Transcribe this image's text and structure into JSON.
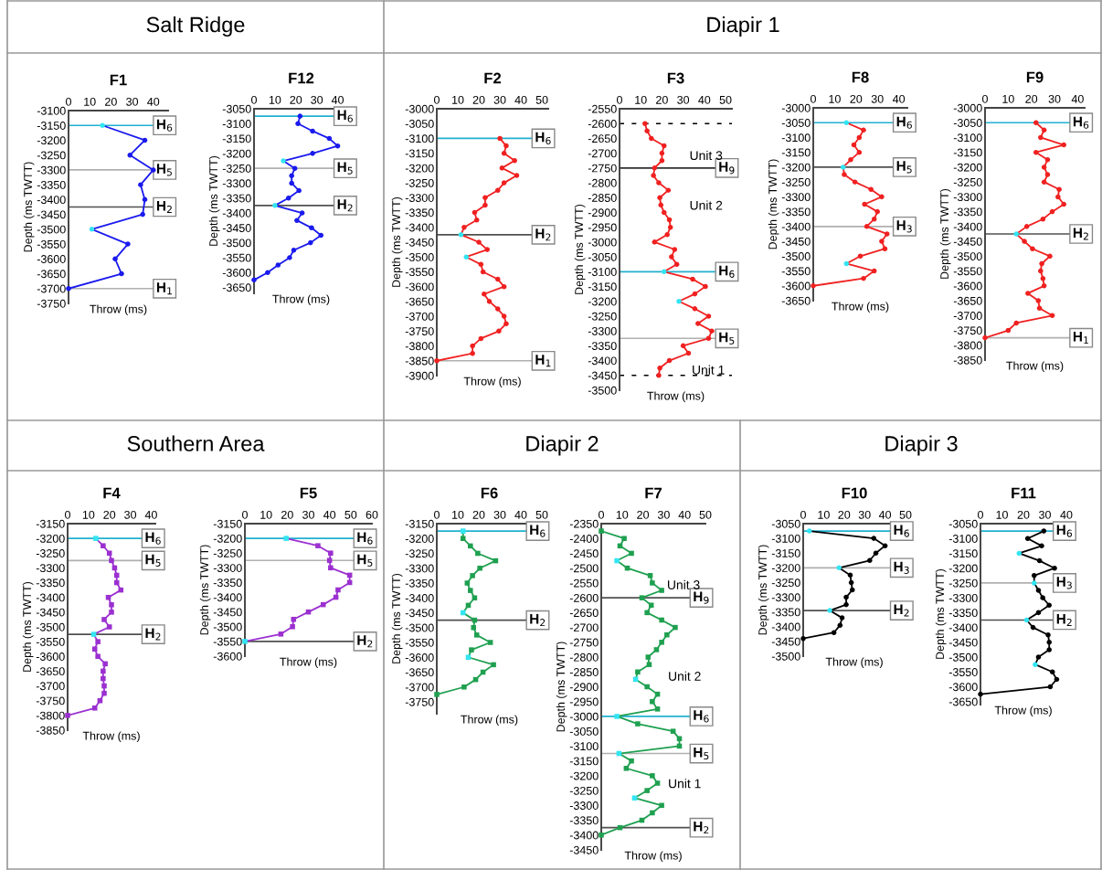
{
  "chart_data": [
    {
      "type": "line",
      "title": "F1",
      "xlabel": "Throw (ms)",
      "ylabel": "Depth (ms TWTT)",
      "marker": "circle",
      "subtitle": "Salt Ridge",
      "xlim": [
        0,
        47
      ],
      "xticks": [
        0,
        10,
        20,
        30,
        40
      ],
      "ylim": [
        -3750,
        -3100
      ],
      "yticks": [
        -3100,
        -3150,
        -3200,
        -3250,
        -3300,
        -3350,
        -3400,
        -3450,
        -3500,
        -3550,
        -3600,
        -3650,
        -3700,
        -3750
      ],
      "series": [
        {
          "color": "#1a1aee",
          "x": [
            16,
            36,
            29,
            40,
            34,
            36,
            35,
            11,
            28,
            22,
            25,
            0
          ],
          "values": [
            -3150,
            -3200,
            -3250,
            -3300,
            -3350,
            -3400,
            -3450,
            -3500,
            -3550,
            -3600,
            -3650,
            -3700
          ],
          "colors": [
            "#33e5f2",
            null,
            null,
            null,
            null,
            null,
            null,
            "#33e5f2",
            null,
            null,
            null,
            null
          ]
        }
      ],
      "ref_lines": [
        {
          "axis": "y",
          "value": -3150,
          "label": "H$_{6}$",
          "color": "#20b0d0"
        },
        {
          "axis": "y",
          "value": -3300,
          "label": "H$_{5}$",
          "color": "#b0b0b0"
        },
        {
          "axis": "y",
          "value": -3425,
          "label": "H$_{2}$",
          "color": "#505050"
        },
        {
          "axis": "y",
          "value": -3700,
          "label": "H$_{1}$",
          "color": "#b0b0b0"
        }
      ]
    },
    {
      "type": "line",
      "title": "F12",
      "xlabel": "Throw (ms)",
      "ylabel": "Depth (ms TWTT)",
      "marker": "circle",
      "xlim": [
        0,
        45
      ],
      "xticks": [
        0,
        10,
        20,
        30,
        40
      ],
      "ylim": [
        -3670,
        -3050
      ],
      "yticks": [
        -3050,
        -3100,
        -3150,
        -3200,
        -3250,
        -3300,
        -3350,
        -3400,
        -3450,
        -3500,
        -3550,
        -3600,
        -3650
      ],
      "series": [
        {
          "color": "#1a1aee",
          "x": [
            22,
            21,
            28,
            36,
            40,
            28,
            14,
            19.5,
            18,
            18,
            21.5,
            16.5,
            10,
            23,
            20.5,
            27.5,
            32,
            27,
            19,
            17,
            11.5,
            6.5,
            0
          ],
          "values": [
            -3075,
            -3100,
            -3125,
            -3150,
            -3175,
            -3200,
            -3225,
            -3250,
            -3275,
            -3300,
            -3325,
            -3350,
            -3375,
            -3400,
            -3425,
            -3450,
            -3475,
            -3500,
            -3525,
            -3550,
            -3575,
            -3600,
            -3625
          ],
          "colors": [
            null,
            null,
            null,
            null,
            null,
            null,
            "#33e5f2",
            null,
            null,
            null,
            null,
            null,
            "#33e5f2",
            null,
            null,
            null,
            null,
            null,
            null,
            null,
            null,
            null,
            null
          ]
        }
      ],
      "ref_lines": [
        {
          "axis": "y",
          "value": -3075,
          "label": "H$_{6}$",
          "color": "#20b0d0"
        },
        {
          "axis": "y",
          "value": -3250,
          "label": "H$_{5}$",
          "color": "#b0b0b0"
        },
        {
          "axis": "y",
          "value": -3375,
          "label": "H$_{2}$",
          "color": "#505050"
        }
      ]
    },
    {
      "type": "line",
      "title": "F2",
      "xlabel": "Throw (ms)",
      "ylabel": "Depth (ms TWTT)",
      "marker": "circle",
      "xlim": [
        0,
        53
      ],
      "xticks": [
        0,
        10,
        20,
        30,
        40,
        50
      ],
      "ylim": [
        -3900,
        -3000
      ],
      "yticks": [
        -3000,
        -3050,
        -3100,
        -3150,
        -3200,
        -3250,
        -3300,
        -3350,
        -3400,
        -3450,
        -3500,
        -3550,
        -3600,
        -3650,
        -3700,
        -3750,
        -3800,
        -3850,
        -3900
      ],
      "series": [
        {
          "color": "#f02020",
          "x": [
            30,
            33,
            32,
            37,
            31,
            38,
            32,
            29,
            23,
            23,
            18,
            19,
            13,
            11.5,
            20,
            24,
            14,
            21,
            22,
            29,
            32,
            22.5,
            25,
            29,
            32,
            33,
            29.5,
            21,
            17,
            17,
            0
          ],
          "values": [
            -3100,
            -3125,
            -3150,
            -3175,
            -3200,
            -3225,
            -3250,
            -3275,
            -3300,
            -3325,
            -3350,
            -3375,
            -3400,
            -3425,
            -3450,
            -3475,
            -3500,
            -3525,
            -3550,
            -3575,
            -3600,
            -3625,
            -3650,
            -3675,
            -3700,
            -3725,
            -3750,
            -3775,
            -3800,
            -3825,
            -3850
          ],
          "colors": [
            null,
            null,
            null,
            null,
            null,
            null,
            null,
            null,
            null,
            null,
            null,
            null,
            null,
            "#33e5f2",
            null,
            null,
            "#33e5f2",
            null,
            null,
            null,
            null,
            null,
            null,
            null,
            null,
            null,
            null,
            null,
            null,
            null,
            null
          ]
        }
      ],
      "ref_lines": [
        {
          "axis": "y",
          "value": -3100,
          "label": "H$_{6}$",
          "color": "#20b0d0"
        },
        {
          "axis": "y",
          "value": -3425,
          "label": "H$_{2}$",
          "color": "#505050"
        },
        {
          "axis": "y",
          "value": -3850,
          "label": "H$_{1}$",
          "color": "#b0b0b0"
        }
      ]
    },
    {
      "type": "line",
      "title": "F3",
      "xlabel": "Throw (ms)",
      "ylabel": "Depth (ms TWTT)",
      "marker": "circle",
      "subtitle": "Diapir 1",
      "xlim": [
        0,
        53
      ],
      "xticks": [
        0,
        10,
        20,
        30,
        40,
        50
      ],
      "ylim": [
        -3500,
        -2550
      ],
      "yticks": [
        -2550,
        -2600,
        -2650,
        -2700,
        -2750,
        -2800,
        -2850,
        -2900,
        -2950,
        -3000,
        -3050,
        -3100,
        -3150,
        -3200,
        -3250,
        -3300,
        -3350,
        -3400,
        -3450,
        -3500
      ],
      "annotations": [
        "Unit 3",
        "Unit 2",
        "Unit 1"
      ],
      "series": [
        {
          "color": "#f02020",
          "x": [
            12,
            13,
            15,
            21,
            20,
            20,
            16.5,
            16,
            18.5,
            23,
            19,
            19.5,
            21,
            23.5,
            24,
            22.5,
            16.5,
            26,
            24.5,
            27,
            21,
            34.5,
            40.5,
            35.5,
            28,
            35.5,
            42,
            37,
            43.5,
            42,
            30,
            32.5,
            23.5,
            19,
            18.5
          ],
          "values": [
            -2600,
            -2625,
            -2650,
            -2675,
            -2700,
            -2725,
            -2750,
            -2775,
            -2800,
            -2825,
            -2850,
            -2875,
            -2900,
            -2925,
            -2950,
            -2975,
            -3000,
            -3025,
            -3050,
            -3075,
            -3100,
            -3125,
            -3150,
            -3175,
            -3200,
            -3225,
            -3250,
            -3275,
            -3300,
            -3325,
            -3350,
            -3375,
            -3400,
            -3425,
            -3450
          ],
          "colors": [
            null,
            null,
            null,
            null,
            null,
            null,
            null,
            null,
            null,
            null,
            null,
            null,
            null,
            null,
            null,
            null,
            null,
            null,
            null,
            null,
            "#33e5f2",
            null,
            null,
            null,
            "#33e5f2",
            null,
            null,
            null,
            null,
            null,
            null,
            null,
            null,
            null,
            null
          ]
        }
      ],
      "ref_lines": [
        {
          "axis": "y",
          "value": -2600,
          "color": "#000000",
          "line_style": "dashed"
        },
        {
          "axis": "y",
          "value": -2750,
          "label": "H$_{9}$",
          "color": "#303030"
        },
        {
          "axis": "y",
          "value": -3100,
          "label": "H$_{6}$",
          "color": "#20b0d0"
        },
        {
          "axis": "y",
          "value": -3325,
          "label": "H$_{5}$",
          "color": "#b0b0b0"
        },
        {
          "axis": "y",
          "value": -3450,
          "color": "#000000",
          "line_style": "dashed"
        }
      ]
    },
    {
      "type": "line",
      "title": "F8",
      "xlabel": "Throw (ms)",
      "ylabel": "Depth (ms TWTT)",
      "marker": "circle",
      "xlim": [
        0,
        44
      ],
      "xticks": [
        0,
        10,
        20,
        30,
        40
      ],
      "ylim": [
        -3650,
        -3000
      ],
      "yticks": [
        -3000,
        -3050,
        -3100,
        -3150,
        -3200,
        -3250,
        -3300,
        -3350,
        -3400,
        -3450,
        -3500,
        -3550,
        -3600,
        -3650
      ],
      "series": [
        {
          "color": "#f02020",
          "x": [
            15.5,
            23.5,
            21.5,
            19,
            21.5,
            17.5,
            14,
            14.5,
            19.5,
            27,
            32,
            24,
            30,
            28.5,
            25,
            34.5,
            32,
            33.5,
            22,
            15.5,
            28.5,
            23.5,
            0
          ],
          "values": [
            -3050,
            -3075,
            -3100,
            -3125,
            -3150,
            -3175,
            -3200,
            -3225,
            -3250,
            -3275,
            -3300,
            -3325,
            -3350,
            -3375,
            -3400,
            -3425,
            -3450,
            -3475,
            -3500,
            -3525,
            -3550,
            -3575,
            -3600
          ],
          "colors": [
            "#33e5f2",
            null,
            null,
            null,
            null,
            null,
            "#33e5f2",
            null,
            null,
            null,
            null,
            null,
            null,
            null,
            null,
            null,
            null,
            null,
            null,
            "#33e5f2",
            null,
            null,
            null
          ]
        }
      ],
      "ref_lines": [
        {
          "axis": "y",
          "value": -3050,
          "label": "H$_{6}$",
          "color": "#20b0d0"
        },
        {
          "axis": "y",
          "value": -3200,
          "label": "H$_{5}$",
          "color": "#505050"
        },
        {
          "axis": "y",
          "value": -3400,
          "label": "H$_{3}$",
          "color": "#b0b0b0"
        }
      ]
    },
    {
      "type": "line",
      "title": "F9",
      "xlabel": "Throw (ms)",
      "ylabel": "Depth (ms TWTT)",
      "marker": "circle",
      "xlim": [
        0,
        43
      ],
      "xticks": [
        0,
        10,
        20,
        30,
        40
      ],
      "ylim": [
        -3850,
        -3000
      ],
      "yticks": [
        -3000,
        -3050,
        -3100,
        -3150,
        -3200,
        -3250,
        -3300,
        -3350,
        -3400,
        -3450,
        -3500,
        -3550,
        -3600,
        -3650,
        -3700,
        -3750,
        -3800,
        -3850
      ],
      "series": [
        {
          "color": "#f02020",
          "x": [
            22,
            25.5,
            24,
            34,
            22,
            27,
            25.5,
            27,
            25.5,
            32,
            31.5,
            34,
            29,
            25,
            18,
            13.5,
            17,
            20.5,
            28,
            24.5,
            24,
            25,
            25.5,
            18.5,
            23,
            23.5,
            29,
            13.5,
            10,
            0
          ],
          "values": [
            -3050,
            -3075,
            -3100,
            -3125,
            -3150,
            -3175,
            -3200,
            -3225,
            -3250,
            -3275,
            -3300,
            -3325,
            -3350,
            -3375,
            -3400,
            -3425,
            -3450,
            -3475,
            -3500,
            -3525,
            -3550,
            -3575,
            -3600,
            -3625,
            -3650,
            -3675,
            -3700,
            -3725,
            -3750,
            -3775
          ],
          "colors": [
            null,
            null,
            null,
            null,
            null,
            null,
            null,
            null,
            null,
            null,
            null,
            null,
            null,
            null,
            null,
            "#33e5f2",
            null,
            null,
            null,
            null,
            null,
            null,
            null,
            null,
            null,
            null,
            null,
            null,
            null,
            null
          ]
        }
      ],
      "ref_lines": [
        {
          "axis": "y",
          "value": -3050,
          "label": "H$_{6}$",
          "color": "#20b0d0"
        },
        {
          "axis": "y",
          "value": -3425,
          "label": "H$_{2}$",
          "color": "#505050"
        },
        {
          "axis": "y",
          "value": -3775,
          "label": "H$_{1}$",
          "color": "#b0b0b0"
        }
      ]
    },
    {
      "type": "line",
      "title": "F4",
      "xlabel": "Throw (ms)",
      "ylabel": "Depth (ms TWTT)",
      "marker": "square",
      "subtitle": "Southern Area",
      "xlim": [
        0,
        42
      ],
      "xticks": [
        0,
        10,
        20,
        30,
        40
      ],
      "ylim": [
        -3850,
        -3150
      ],
      "yticks": [
        -3150,
        -3200,
        -3250,
        -3300,
        -3350,
        -3400,
        -3450,
        -3500,
        -3550,
        -3600,
        -3650,
        -3700,
        -3750,
        -3800,
        -3850
      ],
      "series": [
        {
          "color": "#9b30d0",
          "x": [
            13.5,
            17,
            20,
            21,
            22.5,
            23.5,
            23.5,
            25.5,
            19.5,
            21,
            21,
            17.5,
            20,
            12.5,
            14.5,
            13,
            14.5,
            18,
            17,
            17,
            17.5,
            17.5,
            15.5,
            13,
            0
          ],
          "values": [
            -3200,
            -3225,
            -3250,
            -3275,
            -3300,
            -3325,
            -3350,
            -3375,
            -3400,
            -3425,
            -3450,
            -3475,
            -3500,
            -3525,
            -3550,
            -3575,
            -3600,
            -3625,
            -3650,
            -3675,
            -3700,
            -3725,
            -3750,
            -3775,
            -3800
          ],
          "colors": [
            "#33e5f2",
            null,
            null,
            null,
            null,
            null,
            null,
            null,
            null,
            null,
            null,
            null,
            null,
            "#33e5f2",
            null,
            null,
            null,
            null,
            null,
            null,
            null,
            null,
            null,
            null,
            null
          ]
        }
      ],
      "ref_lines": [
        {
          "axis": "y",
          "value": -3200,
          "label": "H$_{6}$",
          "color": "#20b0d0"
        },
        {
          "axis": "y",
          "value": -3275,
          "label": "H$_{5}$",
          "color": "#b0b0b0"
        },
        {
          "axis": "y",
          "value": -3525,
          "label": "H$_{2}$",
          "color": "#505050"
        }
      ]
    },
    {
      "type": "line",
      "title": "F5",
      "xlabel": "Throw (ms)",
      "ylabel": "Depth (ms TWTT)",
      "marker": "square",
      "xlim": [
        0,
        60
      ],
      "xticks": [
        0,
        10,
        20,
        30,
        40,
        50,
        60
      ],
      "ylim": [
        -3600,
        -3150
      ],
      "yticks": [
        -3150,
        -3200,
        -3250,
        -3300,
        -3350,
        -3400,
        -3450,
        -3500,
        -3550,
        -3600
      ],
      "series": [
        {
          "color": "#9b30d0",
          "x": [
            19.5,
            34.5,
            40.5,
            40,
            40.5,
            49.5,
            49.5,
            44,
            43,
            37,
            30,
            23,
            22.5,
            17,
            0
          ],
          "values": [
            -3200,
            -3225,
            -3250,
            -3275,
            -3300,
            -3325,
            -3350,
            -3375,
            -3400,
            -3425,
            -3450,
            -3475,
            -3500,
            -3525,
            -3550
          ],
          "colors": [
            "#33e5f2",
            null,
            null,
            null,
            null,
            null,
            null,
            null,
            null,
            null,
            null,
            null,
            null,
            null,
            "#33e5f2"
          ]
        }
      ],
      "ref_lines": [
        {
          "axis": "y",
          "value": -3200,
          "label": "H$_{6}$",
          "color": "#20b0d0"
        },
        {
          "axis": "y",
          "value": -3275,
          "label": "H$_{5}$",
          "color": "#b0b0b0"
        },
        {
          "axis": "y",
          "value": -3550,
          "label": "H$_{2}$",
          "color": "#505050"
        }
      ]
    },
    {
      "type": "line",
      "title": "F6",
      "xlabel": "Throw (ms)",
      "ylabel": "Depth (ms TWTT)",
      "marker": "square",
      "subtitle": "Diapir 2",
      "xlim": [
        0,
        50
      ],
      "xticks": [
        0,
        10,
        20,
        30,
        40,
        50
      ],
      "ylim": [
        -3790,
        -3150
      ],
      "yticks": [
        -3150,
        -3200,
        -3250,
        -3300,
        -3350,
        -3400,
        -3450,
        -3500,
        -3550,
        -3600,
        -3650,
        -3700,
        -3750
      ],
      "series": [
        {
          "color": "#1fa050",
          "x": [
            12.5,
            12.5,
            16,
            19.5,
            28,
            20.5,
            17,
            14.5,
            16,
            18,
            15,
            12.5,
            18,
            17.5,
            19,
            25.5,
            16.5,
            15,
            27,
            22,
            18.5,
            13,
            0
          ],
          "values": [
            -3175,
            -3200,
            -3225,
            -3250,
            -3275,
            -3300,
            -3325,
            -3350,
            -3375,
            -3400,
            -3425,
            -3450,
            -3475,
            -3500,
            -3525,
            -3550,
            -3575,
            -3600,
            -3625,
            -3650,
            -3675,
            -3700,
            -3725
          ],
          "colors": [
            "#33e5f2",
            null,
            null,
            null,
            null,
            null,
            null,
            null,
            null,
            null,
            null,
            "#33e5f2",
            null,
            null,
            null,
            null,
            null,
            "#33e5f2",
            null,
            null,
            null,
            null,
            null
          ]
        }
      ],
      "ref_lines": [
        {
          "axis": "y",
          "value": -3175,
          "label": "H$_{6}$",
          "color": "#20b0d0"
        },
        {
          "axis": "y",
          "value": -3475,
          "label": "H$_{2}$",
          "color": "#505050"
        }
      ]
    },
    {
      "type": "line",
      "title": "F7",
      "xlabel": "Throw (ms)",
      "ylabel": "Depth (ms TWTT)",
      "marker": "square",
      "xlim": [
        0,
        50
      ],
      "xticks": [
        0,
        10,
        20,
        30,
        40,
        50
      ],
      "ylim": [
        -3450,
        -2350
      ],
      "yticks": [
        -2350,
        -2400,
        -2450,
        -2500,
        -2550,
        -2600,
        -2650,
        -2700,
        -2750,
        -2800,
        -2850,
        -2900,
        -2950,
        -3000,
        -3050,
        -3100,
        -3150,
        -3200,
        -3250,
        -3300,
        -3350,
        -3400,
        -3450
      ],
      "annotations": [
        "Unit 3",
        "Unit 2",
        "Unit 1"
      ],
      "series": [
        {
          "color": "#1fa050",
          "x": [
            0,
            11,
            9,
            14.5,
            7.5,
            12.5,
            23.5,
            24.5,
            29,
            19.5,
            24,
            22,
            29,
            35.5,
            31.5,
            29,
            26.5,
            22.5,
            23,
            17.5,
            16.5,
            22,
            27,
            24.5,
            27,
            7.5,
            17.5,
            34.5,
            37.5,
            37.5,
            8.5,
            14.5,
            12,
            24.5,
            27,
            22,
            16,
            29,
            24.5,
            19.5,
            9,
            0
          ],
          "values": [
            -2375,
            -2400,
            -2425,
            -2450,
            -2475,
            -2500,
            -2525,
            -2550,
            -2575,
            -2600,
            -2625,
            -2650,
            -2675,
            -2700,
            -2725,
            -2750,
            -2775,
            -2800,
            -2825,
            -2850,
            -2875,
            -2900,
            -2925,
            -2950,
            -2975,
            -3000,
            -3025,
            -3050,
            -3075,
            -3100,
            -3125,
            -3150,
            -3175,
            -3200,
            -3225,
            -3250,
            -3275,
            -3300,
            -3325,
            -3350,
            -3375,
            -3400
          ],
          "colors": [
            null,
            null,
            null,
            null,
            "#33e5f2",
            null,
            null,
            null,
            null,
            null,
            null,
            null,
            null,
            null,
            null,
            null,
            null,
            null,
            null,
            null,
            "#33e5f2",
            null,
            null,
            null,
            null,
            "#33e5f2",
            null,
            null,
            null,
            null,
            "#33e5f2",
            null,
            null,
            null,
            null,
            null,
            "#33e5f2",
            null,
            null,
            null,
            null,
            null
          ]
        }
      ],
      "ref_lines": [
        {
          "axis": "y",
          "value": -2600,
          "label": "H$_{9}$",
          "color": "#505050"
        },
        {
          "axis": "y",
          "value": -3000,
          "label": "H$_{6}$",
          "color": "#20b0d0"
        },
        {
          "axis": "y",
          "value": -3125,
          "label": "H$_{5}$",
          "color": "#b0b0b0"
        },
        {
          "axis": "y",
          "value": -3375,
          "label": "H$_{2}$",
          "color": "#505050"
        }
      ]
    },
    {
      "type": "line",
      "title": "F10",
      "xlabel": "Throw (ms)",
      "ylabel": "Depth (ms TWTT)",
      "marker": "circle",
      "subtitle": "Diapir 3",
      "xlim": [
        0,
        50
      ],
      "xticks": [
        0,
        10,
        20,
        30,
        40,
        50
      ],
      "ylim": [
        -3500,
        -3050
      ],
      "yticks": [
        -3050,
        -3100,
        -3150,
        -3200,
        -3250,
        -3300,
        -3350,
        -3400,
        -3450,
        -3500
      ],
      "series": [
        {
          "color": "#000000",
          "x": [
            3,
            34.5,
            40,
            35.5,
            32.5,
            17.5,
            23,
            23.5,
            24,
            21,
            21,
            13,
            19,
            18,
            15,
            0
          ],
          "values": [
            -3075,
            -3100,
            -3125,
            -3150,
            -3175,
            -3200,
            -3225,
            -3250,
            -3275,
            -3300,
            -3325,
            -3345,
            -3370,
            -3395,
            -3420,
            -3440
          ],
          "colors": [
            "#33e5f2",
            null,
            null,
            null,
            null,
            "#33e5f2",
            null,
            null,
            null,
            null,
            null,
            "#33e5f2",
            null,
            null,
            null,
            null
          ]
        }
      ],
      "ref_lines": [
        {
          "axis": "y",
          "value": -3075,
          "label": "H$_{6}$",
          "color": "#20b0d0"
        },
        {
          "axis": "y",
          "value": -3200,
          "label": "H$_{3}$",
          "color": "#b0b0b0"
        },
        {
          "axis": "y",
          "value": -3345,
          "label": "H$_{2}$",
          "color": "#505050"
        }
      ]
    },
    {
      "type": "line",
      "title": "F11",
      "xlabel": "Throw (ms)",
      "ylabel": "Depth (ms TWTT)",
      "marker": "circle",
      "xlim": [
        0,
        40
      ],
      "xticks": [
        0,
        10,
        20,
        30,
        40
      ],
      "ylim": [
        -3660,
        -3050
      ],
      "yticks": [
        -3050,
        -3100,
        -3150,
        -3200,
        -3250,
        -3300,
        -3350,
        -3400,
        -3450,
        -3500,
        -3550,
        -3600,
        -3650
      ],
      "series": [
        {
          "color": "#000000",
          "x": [
            29.5,
            22,
            28.5,
            18,
            27.5,
            34.5,
            25,
            25,
            27,
            29,
            32,
            27,
            21.5,
            24.5,
            31.5,
            32,
            32,
            27,
            25.5,
            33.5,
            35.5,
            32.5,
            0
          ],
          "values": [
            -3075,
            -3100,
            -3125,
            -3150,
            -3175,
            -3200,
            -3225,
            -3250,
            -3275,
            -3300,
            -3325,
            -3350,
            -3375,
            -3400,
            -3425,
            -3450,
            -3475,
            -3500,
            -3525,
            -3550,
            -3575,
            -3600,
            -3625
          ],
          "colors": [
            null,
            null,
            null,
            "#33e5f2",
            null,
            null,
            null,
            "#33e5f2",
            null,
            null,
            null,
            null,
            "#33e5f2",
            null,
            null,
            null,
            null,
            null,
            "#33e5f2",
            null,
            null,
            null,
            null
          ]
        }
      ],
      "ref_lines": [
        {
          "axis": "y",
          "value": -3075,
          "label": "H$_{6}$",
          "color": "#20b0d0"
        },
        {
          "axis": "y",
          "value": -3250,
          "label": "H$_{3}$",
          "color": "#b0b0b0"
        },
        {
          "axis": "y",
          "value": -3375,
          "label": "H$_{2}$",
          "color": "#505050"
        }
      ]
    }
  ]
}
